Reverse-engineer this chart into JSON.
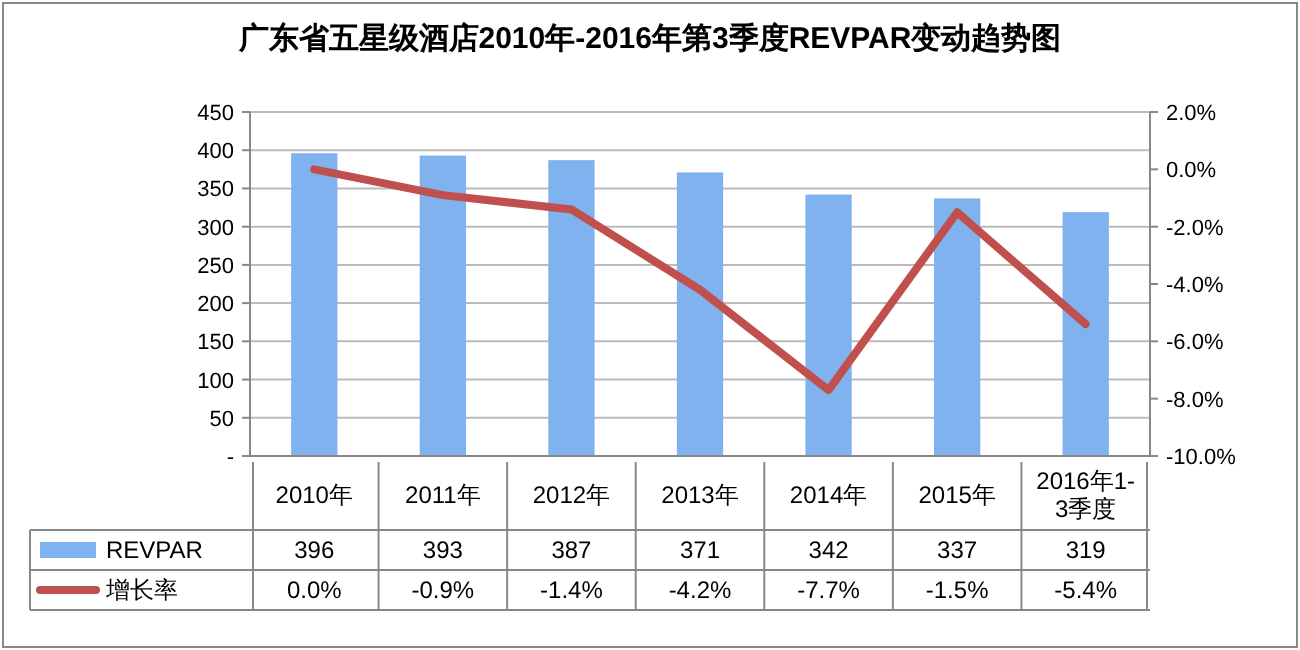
{
  "chart_data": {
    "type": "bar",
    "title": "广东省五星级酒店2010年-2016年第3季度REVPAR变动趋势图",
    "categories": [
      "2010年",
      "2011年",
      "2012年",
      "2013年",
      "2014年",
      "2015年",
      "2016年1-3季度"
    ],
    "series": [
      {
        "name": "REVPAR",
        "color": "#7fb2ee",
        "values": [
          396,
          393,
          387,
          371,
          342,
          337,
          319
        ],
        "value_labels": [
          "396",
          "393",
          "387",
          "371",
          "342",
          "337",
          "319"
        ]
      },
      {
        "name": "增长率",
        "type": "line",
        "axis": "y2",
        "color": "#c0504d",
        "values": [
          0.0,
          -0.9,
          -1.4,
          -4.2,
          -7.7,
          -1.5,
          -5.4
        ],
        "value_labels": [
          "0.0%",
          "-0.9%",
          "-1.4%",
          "-4.2%",
          "-7.7%",
          "-1.5%",
          "-5.4%"
        ]
      }
    ],
    "ylim": [
      0,
      450
    ],
    "yticks": [
      {
        "value": 0,
        "label": "-"
      },
      50,
      100,
      150,
      200,
      250,
      300,
      350,
      400,
      450
    ],
    "y2lim": [
      -10,
      2
    ],
    "y2ticks": [
      {
        "value": 2,
        "label": "2.0%"
      },
      {
        "value": 0,
        "label": "0.0%"
      },
      {
        "value": -2,
        "label": "-2.0%"
      },
      {
        "value": -4,
        "label": "-4.0%"
      },
      {
        "value": -6,
        "label": "-6.0%"
      },
      {
        "value": -8,
        "label": "-8.0%"
      },
      {
        "value": -10,
        "label": "-10.0%"
      }
    ],
    "grid": "y",
    "legend": "bottom",
    "line_style": "solid",
    "marker": "none"
  }
}
